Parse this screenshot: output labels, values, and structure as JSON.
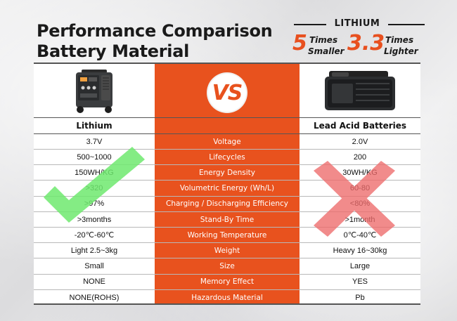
{
  "headline": {
    "line1": "Performance Comparison",
    "line2": "Battery Material"
  },
  "badge": {
    "label": "LITHIUM",
    "stat1": {
      "number": "5",
      "word1": "Times",
      "word2": "Smaller"
    },
    "stat2": {
      "number": "3.3",
      "word1": "Times",
      "word2": "Lighter"
    }
  },
  "vs_label": "VS",
  "columns": {
    "left": "Lithium",
    "right": "Lead Acid Batteries"
  },
  "rows": [
    {
      "left": "3.7V",
      "feature": "Voltage",
      "right": "2.0V"
    },
    {
      "left": "500~1000",
      "feature": "Lifecycles",
      "right": "200"
    },
    {
      "left": "150WH/KG",
      "feature": "Energy Density",
      "right": "30WH/KG"
    },
    {
      "left": ">320",
      "feature": "Volumetric Energy (Wh/L)",
      "right": "60-80"
    },
    {
      "left": ">97%",
      "feature": "Charging / Discharging Efficiency",
      "right": "<80%"
    },
    {
      "left": ">3months",
      "feature": "Stand-By Time",
      "right": ">1month"
    },
    {
      "left": "-20℃-60℃",
      "feature": "Working Temperature",
      "right": "0℃-40℃"
    },
    {
      "left": "Light 2.5~3kg",
      "feature": "Weight",
      "right": "Heavy 16~30kg"
    },
    {
      "left": "Small",
      "feature": "Size",
      "right": "Large"
    },
    {
      "left": "NONE",
      "feature": "Memory Effect",
      "right": "YES"
    },
    {
      "left": "NONE(ROHS)",
      "feature": "Hazardous Material",
      "right": "Pb"
    }
  ],
  "colors": {
    "accent": "#e8521e",
    "check": "#6ee96e",
    "cross": "#ee6b6b"
  },
  "icons": {
    "lithium_product": "power-station-icon",
    "lead_product": "lead-acid-battery-icon",
    "positive_mark": "checkmark-icon",
    "negative_mark": "x-mark-icon"
  }
}
